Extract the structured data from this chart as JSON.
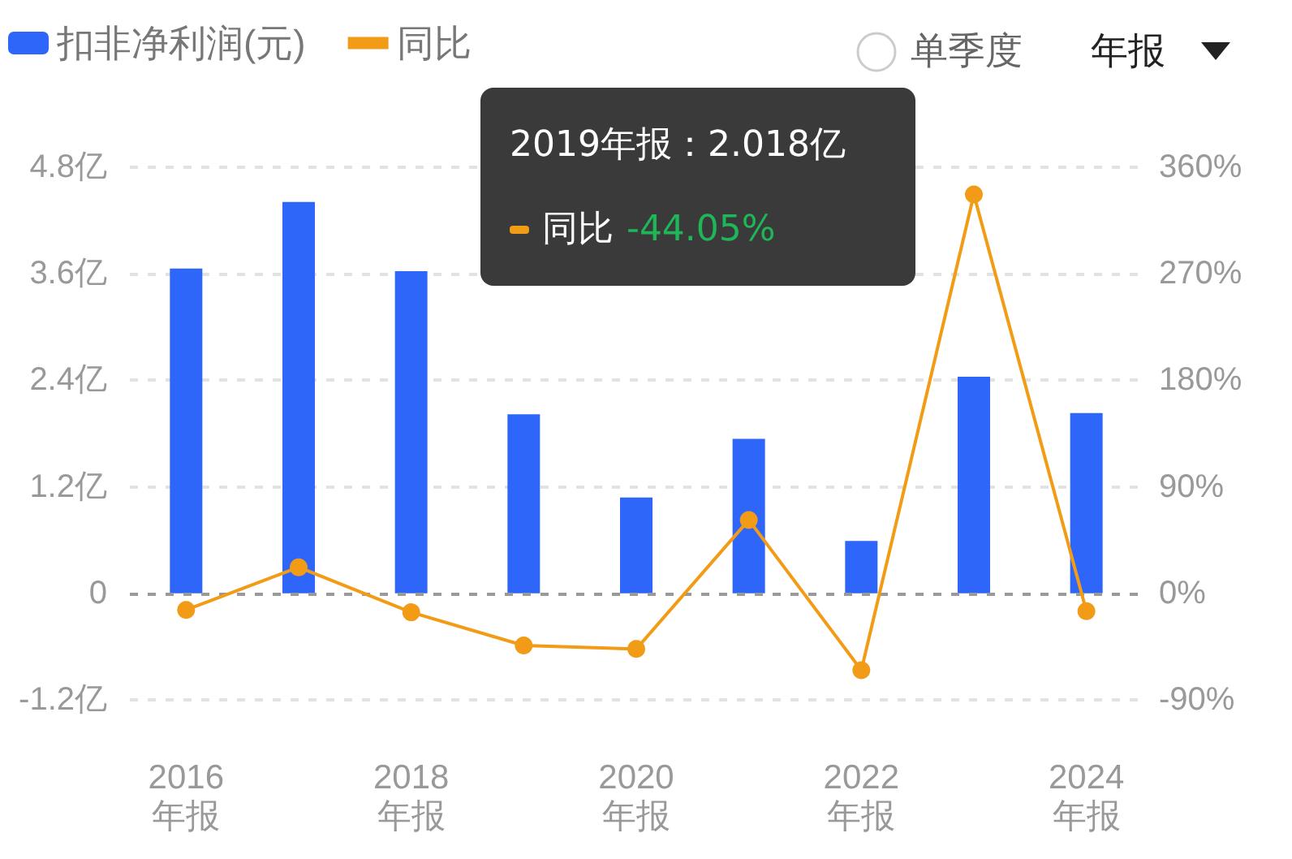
{
  "chart_data": {
    "type": "bar",
    "categories": [
      "2016\n年报",
      null,
      "2018\n年报",
      null,
      "2020\n年报",
      null,
      "2022\n年报",
      null,
      "2024\n年报"
    ],
    "series": [
      {
        "name": "扣非净利润(元)",
        "color": "#2f66fa",
        "values": [
          3.66,
          4.41,
          3.63,
          2.018,
          1.08,
          1.74,
          0.59,
          2.44,
          2.03
        ]
      },
      {
        "name": "同比",
        "type": "line",
        "axis": "y2",
        "color": "#f29b16",
        "values": [
          -14,
          22,
          -16,
          -44.05,
          -47,
          62,
          -65,
          337,
          -15
        ]
      }
    ],
    "ylim": [
      -1.2,
      4.8
    ],
    "yticks": [
      {
        "value": -1.2,
        "label": "-1.2亿"
      },
      {
        "value": 0,
        "label": "0"
      },
      {
        "value": 1.2,
        "label": "1.2亿"
      },
      {
        "value": 2.4,
        "label": "2.4亿"
      },
      {
        "value": 3.6,
        "label": "3.6亿"
      },
      {
        "value": 4.8,
        "label": "4.8亿"
      }
    ],
    "y2lim": [
      -90,
      360
    ],
    "y2ticks": [
      {
        "value": -90,
        "label": "-90%"
      },
      {
        "value": 0,
        "label": "0%"
      },
      {
        "value": 90,
        "label": "90%"
      },
      {
        "value": 180,
        "label": "180%"
      },
      {
        "value": 270,
        "label": "270%"
      },
      {
        "value": 360,
        "label": "360%"
      }
    ],
    "ref_lines": [
      {
        "axis": "y",
        "value": 0,
        "color": "#9a9a9a",
        "line_style": "dashed"
      }
    ],
    "grid": "y",
    "legend": "top left",
    "marker": "circle",
    "annotations": [
      "单季度",
      "年报",
      "2019年报：2.018亿",
      "同比",
      "-44.05%"
    ]
  }
}
